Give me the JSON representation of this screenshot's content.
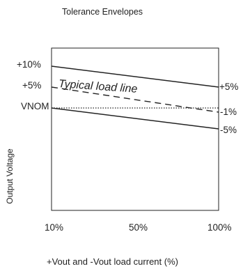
{
  "title": "Tolerance Envelopes",
  "y_axis_label": "Output Voltage",
  "x_axis_label": "+Vout and -Vout load current (%)",
  "left_labels": {
    "plus10": "+10%",
    "plus5": "+5%",
    "vnom": "VNOM"
  },
  "right_labels": {
    "plus5": "+5%",
    "minus1": "-1%",
    "minus5": "-5%"
  },
  "x_ticks": [
    "10%",
    "50%",
    "100%"
  ],
  "load_line_label": "Typical load line",
  "chart_data": {
    "type": "line",
    "x": [
      10,
      100
    ],
    "xlabel": "+Vout and -Vout load current (%)",
    "ylabel": "Output Voltage",
    "series": [
      {
        "name": "upper",
        "values": [
          10,
          5
        ],
        "style": "solid"
      },
      {
        "name": "Typical load line",
        "values": [
          5,
          -1
        ],
        "style": "dashed"
      },
      {
        "name": "VNOM",
        "values": [
          0,
          0
        ],
        "style": "dotted"
      },
      {
        "name": "lower",
        "values": [
          0,
          -5
        ],
        "style": "solid"
      }
    ]
  }
}
